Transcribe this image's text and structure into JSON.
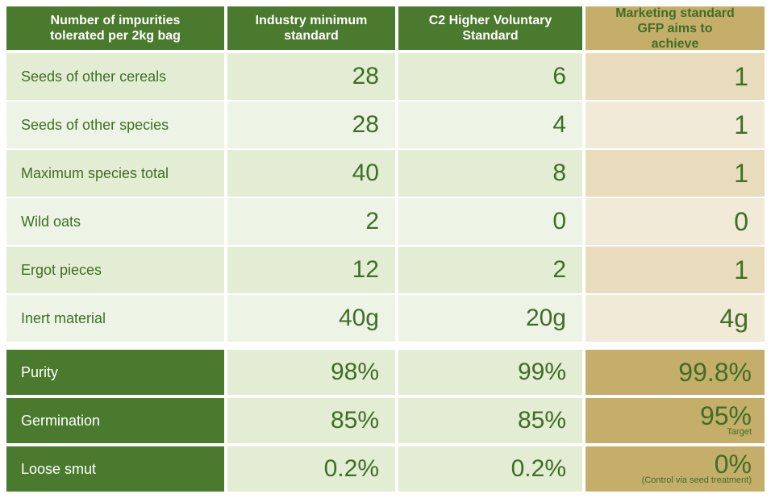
{
  "table": {
    "header": [
      "Number of impurities tolerated per 2kg bag",
      "Industry minimum standard",
      "C2 Higher Voluntary Standard",
      "Marketing standard GFP aims to achieve"
    ],
    "rows": [
      [
        "Seeds of other cereals",
        "28",
        "6",
        "1"
      ],
      [
        "Seeds of other species",
        "28",
        "4",
        "1"
      ],
      [
        "Maximum species total",
        "40",
        "8",
        "1"
      ],
      [
        "Wild oats",
        "2",
        "0",
        "0"
      ],
      [
        "Ergot pieces",
        "12",
        "2",
        "1"
      ],
      [
        "Inert material",
        "40g",
        "20g",
        "4g"
      ]
    ],
    "quality_rows": [
      {
        "cells": [
          "Purity",
          "98%",
          "99%",
          "99.8%"
        ]
      },
      {
        "cells": [
          "Germination",
          "85%",
          "85%",
          "95%"
        ],
        "note": "Target"
      },
      {
        "cells": [
          "Loose smut",
          "0.2%",
          "0.2%",
          "0%"
        ],
        "note": "(Control via seed treatment)"
      }
    ]
  }
}
